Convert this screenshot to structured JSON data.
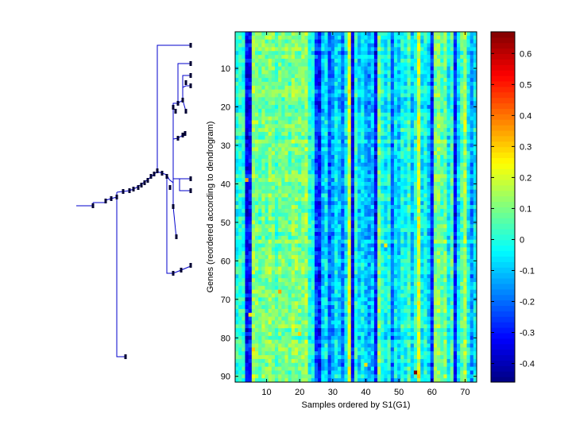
{
  "chart_data": [
    {
      "type": "heatmap",
      "title": "",
      "xlabel": "Samples ordered by S1(G1)",
      "ylabel": "Genes (reordered according to dendrogram)",
      "xlim": [
        0.5,
        73.5
      ],
      "ylim": [
        91.5,
        0.5
      ],
      "n_rows": 91,
      "n_cols": 73,
      "x_ticks": [
        10,
        20,
        30,
        40,
        50,
        60,
        70
      ],
      "y_ticks": [
        10,
        20,
        30,
        40,
        50,
        60,
        70,
        80,
        90
      ],
      "colormap": "jet",
      "clim": [
        -0.46,
        0.67
      ],
      "column_profile": [
        {
          "col": 1,
          "value": 0.0
        },
        {
          "col": 2,
          "value": 0.02
        },
        {
          "col": 3,
          "value": 0.0
        },
        {
          "col": 4,
          "value": -0.33
        },
        {
          "col": 5,
          "value": -0.3
        },
        {
          "col": 6,
          "value": 0.12
        },
        {
          "col": 7,
          "value": 0.1
        },
        {
          "col": 8,
          "value": 0.06
        },
        {
          "col": 9,
          "value": 0.1
        },
        {
          "col": 10,
          "value": 0.08
        },
        {
          "col": 11,
          "value": 0.12
        },
        {
          "col": 12,
          "value": 0.1
        },
        {
          "col": 13,
          "value": 0.05
        },
        {
          "col": 14,
          "value": 0.1
        },
        {
          "col": 15,
          "value": 0.08
        },
        {
          "col": 16,
          "value": 0.1
        },
        {
          "col": 17,
          "value": 0.06
        },
        {
          "col": 18,
          "value": 0.12
        },
        {
          "col": 19,
          "value": 0.1
        },
        {
          "col": 20,
          "value": 0.08
        },
        {
          "col": 21,
          "value": 0.1
        },
        {
          "col": 22,
          "value": 0.14
        },
        {
          "col": 23,
          "value": 0.0
        },
        {
          "col": 24,
          "value": -0.02
        },
        {
          "col": 25,
          "value": -0.25
        },
        {
          "col": 26,
          "value": -0.3
        },
        {
          "col": 27,
          "value": -0.1
        },
        {
          "col": 28,
          "value": -0.05
        },
        {
          "col": 29,
          "value": -0.22
        },
        {
          "col": 30,
          "value": -0.15
        },
        {
          "col": 31,
          "value": -0.05
        },
        {
          "col": 32,
          "value": -0.1
        },
        {
          "col": 33,
          "value": -0.2
        },
        {
          "col": 34,
          "value": -0.05
        },
        {
          "col": 35,
          "value": 0.2
        },
        {
          "col": 36,
          "value": -0.32
        },
        {
          "col": 37,
          "value": 0.0
        },
        {
          "col": 38,
          "value": -0.1
        },
        {
          "col": 39,
          "value": -0.05
        },
        {
          "col": 40,
          "value": -0.12
        },
        {
          "col": 41,
          "value": -0.15
        },
        {
          "col": 42,
          "value": -0.1
        },
        {
          "col": 43,
          "value": -0.3
        },
        {
          "col": 44,
          "value": 0.1
        },
        {
          "col": 45,
          "value": 0.0
        },
        {
          "col": 46,
          "value": -0.05
        },
        {
          "col": 47,
          "value": 0.0
        },
        {
          "col": 48,
          "value": -0.2
        },
        {
          "col": 49,
          "value": -0.05
        },
        {
          "col": 50,
          "value": -0.1
        },
        {
          "col": 51,
          "value": 0.0
        },
        {
          "col": 52,
          "value": -0.05
        },
        {
          "col": 53,
          "value": 0.05
        },
        {
          "col": 54,
          "value": -0.1
        },
        {
          "col": 55,
          "value": 0.0
        },
        {
          "col": 56,
          "value": 0.2
        },
        {
          "col": 57,
          "value": -0.05
        },
        {
          "col": 58,
          "value": 0.0
        },
        {
          "col": 59,
          "value": -0.1
        },
        {
          "col": 60,
          "value": -0.28
        },
        {
          "col": 61,
          "value": 0.1
        },
        {
          "col": 62,
          "value": 0.12
        },
        {
          "col": 63,
          "value": 0.05
        },
        {
          "col": 64,
          "value": 0.1
        },
        {
          "col": 65,
          "value": -0.05
        },
        {
          "col": 66,
          "value": 0.05
        },
        {
          "col": 67,
          "value": -0.3
        },
        {
          "col": 68,
          "value": -0.05
        },
        {
          "col": 69,
          "value": 0.05
        },
        {
          "col": 70,
          "value": 0.15
        },
        {
          "col": 71,
          "value": -0.05
        },
        {
          "col": 72,
          "value": -0.15
        },
        {
          "col": 73,
          "value": -0.05
        }
      ],
      "hot_spots": [
        {
          "row": 89,
          "col": 55,
          "value": 0.67
        },
        {
          "row": 39,
          "col": 4,
          "value": 0.35
        },
        {
          "row": 68,
          "col": 14,
          "value": 0.35
        },
        {
          "row": 83,
          "col": 6,
          "value": 0.3
        },
        {
          "row": 79,
          "col": 20,
          "value": 0.3
        },
        {
          "row": 74,
          "col": 5,
          "value": 0.28
        },
        {
          "row": 87,
          "col": 40,
          "value": 0.28
        },
        {
          "row": 56,
          "col": 46,
          "value": 0.27
        }
      ],
      "colorbar": {
        "ticks": [
          -0.4,
          -0.3,
          -0.2,
          -0.1,
          0,
          0.1,
          0.2,
          0.3,
          0.4,
          0.5,
          0.6
        ],
        "tick_labels": [
          "-0.4",
          "-0.3",
          "-0.2",
          "-0.1",
          "0",
          "0.1",
          "0.2",
          "0.3",
          "0.4",
          "0.5",
          "0.6"
        ],
        "range": [
          -0.46,
          0.67
        ]
      }
    },
    {
      "type": "dendrogram",
      "orientation": "left",
      "color": "#0000cc",
      "leaf_color": "#000033"
    }
  ]
}
